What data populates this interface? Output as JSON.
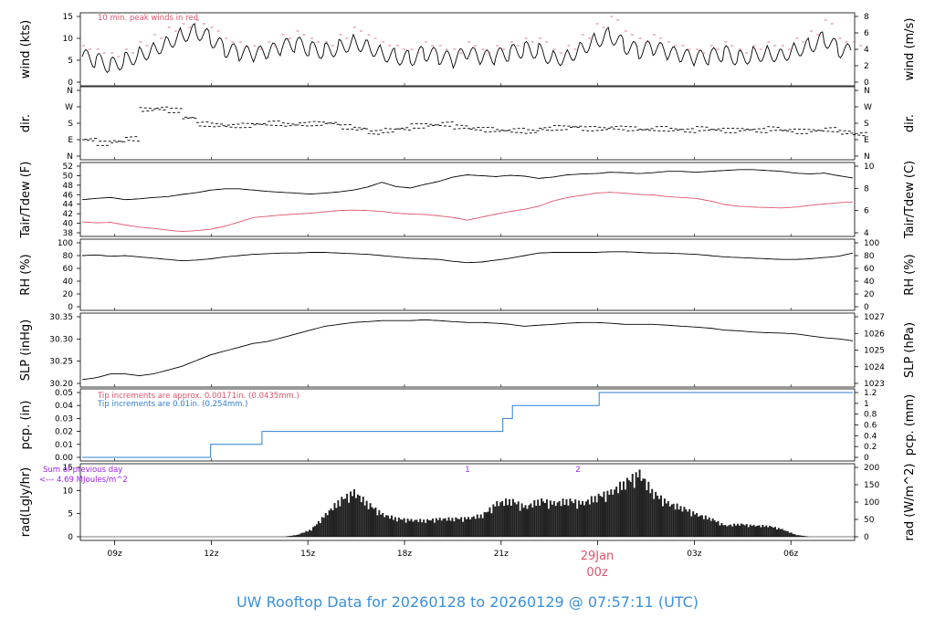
{
  "title": "UW Rooftop Data for 20260128  to  20260129 @ 07:57:11  (UTC)",
  "colors": {
    "red": "#df536b",
    "blue": "#2e7fd0",
    "purple": "#a020f0",
    "title": "#3a8fd8"
  },
  "time_axis": {
    "labels": [
      "09z",
      "12z",
      "15z",
      "18z",
      "21z",
      "03z",
      "06z"
    ],
    "date_label": "29Jan",
    "date_sub": "00z"
  },
  "chart_data": [
    {
      "type": "line",
      "ylabel_left": "wind (kts)",
      "ylabel_right": "wind (m/s)",
      "yticks_left": [
        "0",
        "5",
        "10",
        "15"
      ],
      "yticks_right": [
        "0",
        "2",
        "4",
        "6",
        "8"
      ],
      "ylim": [
        0,
        18
      ],
      "annotation": "10 min. peak winds in red",
      "series": [
        {
          "values_knots": [
            7.0,
            6.0,
            4.5,
            6.0,
            7.5,
            9.0,
            11.0,
            13.0,
            14.0,
            12.0,
            9.0,
            8.0,
            7.5,
            8.0,
            9.5,
            10.5,
            9.0,
            8.5,
            9.5,
            11.0,
            10.0,
            8.0,
            7.0,
            6.5,
            8.0,
            7.0,
            6.0,
            8.0,
            6.5,
            7.0,
            8.0,
            9.0,
            8.5,
            6.5,
            7.0,
            9.5,
            11.5,
            13.0,
            10.0,
            8.5,
            9.5,
            8.0,
            7.0,
            6.5,
            7.0,
            8.0,
            6.5,
            7.5,
            8.0,
            7.5,
            9.0,
            10.0,
            12.0,
            9.0,
            8.0
          ]
        },
        {
          "name": "10 min. peak winds",
          "values_knots": [
            10,
            9,
            8,
            9,
            11,
            13,
            15,
            16,
            17,
            15,
            12,
            11,
            10,
            11,
            13,
            14,
            12,
            11,
            13,
            15,
            13,
            11,
            10,
            9,
            11,
            10,
            9,
            11,
            9,
            10,
            11,
            12,
            12,
            9,
            10,
            13,
            16,
            18,
            14,
            12,
            13,
            11,
            10,
            9,
            10,
            11,
            9,
            10,
            11,
            10,
            12,
            14,
            17,
            12,
            11
          ]
        }
      ]
    },
    {
      "type": "scatter",
      "ylabel_left": "dir.",
      "ylabel_right": "dir.",
      "yticks_left": [
        "N",
        "E",
        "S",
        "W",
        "N"
      ],
      "yticks_right": [
        "N",
        "E",
        "S",
        "W",
        "N"
      ],
      "ylim": [
        0,
        360
      ],
      "values_deg": [
        90,
        70,
        80,
        95,
        255,
        260,
        250,
        210,
        175,
        170,
        165,
        168,
        175,
        180,
        172,
        175,
        178,
        180,
        160,
        150,
        130,
        140,
        150,
        165,
        170,
        175,
        160,
        150,
        145,
        140,
        140,
        135,
        150,
        155,
        160,
        150,
        150,
        155,
        150,
        145,
        150,
        145,
        140,
        150,
        145,
        140,
        145,
        140,
        150,
        140,
        135,
        140,
        145,
        130,
        120
      ]
    },
    {
      "type": "line",
      "ylabel_left": "Tair/Tdew (F)",
      "ylabel_right": "Tair/Tdew (C)",
      "yticks_left": [
        "38",
        "40",
        "42",
        "44",
        "46",
        "48",
        "50",
        "52"
      ],
      "yticks_right": [
        "4",
        "6",
        "8",
        "10"
      ],
      "ylim": [
        37.7,
        53
      ],
      "series": [
        {
          "name": "Tair",
          "values": [
            45.3,
            45.6,
            45.8,
            45.3,
            45.5,
            45.8,
            46.0,
            46.5,
            46.9,
            47.5,
            47.8,
            47.8,
            47.5,
            47.2,
            47.0,
            46.8,
            46.6,
            46.8,
            47.1,
            47.5,
            48.2,
            49.3,
            48.3,
            48.0,
            48.8,
            49.5,
            50.5,
            51.0,
            50.8,
            50.6,
            50.9,
            50.7,
            50.2,
            50.5,
            51.0,
            51.2,
            51.3,
            51.6,
            51.5,
            51.3,
            51.5,
            51.8,
            51.8,
            51.6,
            51.8,
            52.0,
            52.2,
            52.2,
            52.0,
            51.8,
            51.4,
            51.2,
            51.4,
            50.8,
            50.3
          ]
        },
        {
          "name": "Tdew",
          "values": [
            40.2,
            40.0,
            40.1,
            39.5,
            39.0,
            38.7,
            38.3,
            38.0,
            38.2,
            38.5,
            39.2,
            40.2,
            41.2,
            41.5,
            41.8,
            42.0,
            42.2,
            42.5,
            42.8,
            42.9,
            42.8,
            42.6,
            42.2,
            42.0,
            41.9,
            41.6,
            41.2,
            40.6,
            41.3,
            42.0,
            42.6,
            43.1,
            43.8,
            45.0,
            45.8,
            46.3,
            46.8,
            47.0,
            46.8,
            46.5,
            46.4,
            46.0,
            45.8,
            45.6,
            45.0,
            44.2,
            43.8,
            43.6,
            43.5,
            43.4,
            43.6,
            44.0,
            44.3,
            44.6,
            44.8
          ]
        }
      ]
    },
    {
      "type": "line",
      "ylabel_left": "RH (%)",
      "ylabel_right": "RH (%)",
      "yticks_left": [
        "0",
        "20",
        "40",
        "60",
        "80",
        "100"
      ],
      "yticks_right": [
        "0",
        "20",
        "40",
        "60",
        "80",
        "100"
      ],
      "ylim": [
        0,
        100
      ],
      "series": [
        {
          "name": "RH",
          "values": [
            80,
            81,
            79,
            80,
            78,
            76,
            74,
            72,
            73,
            75,
            78,
            80,
            82,
            83,
            84,
            84,
            85,
            85,
            84,
            83,
            82,
            80,
            78,
            76,
            75,
            74,
            71,
            69,
            70,
            73,
            76,
            80,
            84,
            85,
            85,
            85,
            85,
            86,
            86,
            85,
            84,
            84,
            83,
            82,
            80,
            78,
            77,
            76,
            75,
            74,
            74,
            75,
            77,
            79,
            84
          ]
        }
      ]
    },
    {
      "type": "line",
      "ylabel_left": "SLP (inHg)",
      "ylabel_right": "SLP (hPa)",
      "yticks_left": [
        "30.20",
        "30.25",
        "30.30",
        "30.35"
      ],
      "yticks_right": [
        "1023",
        "1024",
        "1025",
        "1026",
        "1027"
      ],
      "ylim": [
        30.18,
        30.355
      ],
      "series": [
        {
          "name": "SLP",
          "values": [
            30.19,
            30.195,
            30.205,
            30.205,
            30.2,
            30.205,
            30.215,
            30.225,
            30.24,
            30.255,
            30.265,
            30.275,
            30.285,
            30.29,
            30.3,
            30.31,
            30.32,
            30.33,
            30.335,
            30.34,
            30.342,
            30.345,
            30.345,
            30.345,
            30.347,
            30.345,
            30.342,
            30.34,
            30.34,
            30.338,
            30.335,
            30.33,
            30.333,
            30.335,
            30.338,
            30.34,
            30.34,
            30.338,
            30.335,
            30.335,
            30.335,
            30.333,
            30.33,
            30.328,
            30.325,
            30.32,
            30.318,
            30.315,
            30.313,
            30.312,
            30.31,
            30.305,
            30.3,
            30.297,
            30.292
          ]
        }
      ]
    },
    {
      "type": "line",
      "ylabel_left": "pcp. (in)",
      "ylabel_right": "pcp. (mm)",
      "yticks_left": [
        "0.00",
        "0.01",
        "0.02",
        "0.03",
        "0.04",
        "0.05"
      ],
      "yticks_right": [
        "0",
        "0.2",
        "0.4",
        "0.6",
        "0.8",
        "1",
        "1.2"
      ],
      "ylim": [
        0,
        0.05
      ],
      "annotation_red": "Tip increments are approx. 0.00171in. (0.0435mm.)",
      "annotation_blue": "Tip increments are 0.01in. (0.254mm.)",
      "series": [
        {
          "name": "accumulated",
          "steps_hours_since_0800": [
            [
              0,
              0.0
            ],
            [
              4,
              0.01
            ],
            [
              5.6,
              0.02
            ],
            [
              13.1,
              0.03
            ],
            [
              13.4,
              0.04
            ],
            [
              16.1,
              0.05
            ]
          ]
        }
      ]
    },
    {
      "type": "area",
      "ylabel_left": "rad(Lgly/hr)",
      "ylabel_right": "rad (W/m^2)",
      "yticks_left": [
        "0",
        "5",
        "10",
        "15"
      ],
      "yticks_right": [
        "0",
        "50",
        "100",
        "150",
        "200"
      ],
      "ylim": [
        0,
        17.5
      ],
      "annotation_1": "Sum of previous day",
      "annotation_2": "<--- 4.69 MJoules/m^2",
      "markers": [
        "1",
        "2"
      ],
      "series": [
        {
          "name": "rad",
          "values": [
            0,
            0,
            0,
            0,
            0,
            0,
            0,
            0,
            0,
            0,
            0,
            0,
            0,
            0,
            0,
            0.5,
            2,
            6,
            10,
            12,
            9,
            6,
            5,
            4.5,
            4.5,
            4.8,
            5,
            5,
            6,
            9,
            10,
            8,
            10,
            9,
            10,
            9,
            11,
            12,
            15,
            17,
            12,
            9,
            8,
            6,
            5,
            3,
            3.5,
            3,
            3,
            2,
            0.5,
            0,
            0,
            0,
            0
          ]
        }
      ]
    }
  ]
}
